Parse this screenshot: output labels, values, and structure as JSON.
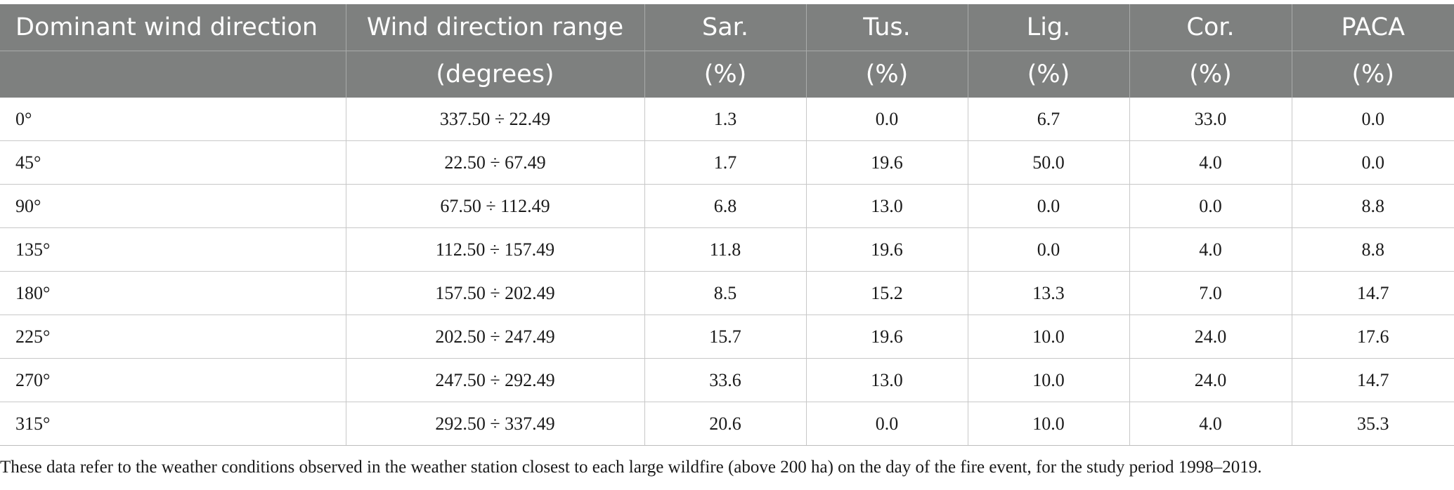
{
  "table": {
    "header_row1": [
      "Dominant wind direction",
      "Wind direction range",
      "Sar.",
      "Tus.",
      "Lig.",
      "Cor.",
      "PACA"
    ],
    "header_row2": [
      "",
      "(degrees)",
      "(%)",
      "(%)",
      "(%)",
      "(%)",
      "(%)"
    ],
    "rows": [
      [
        "0°",
        "337.50 ÷ 22.49",
        "1.3",
        "0.0",
        "6.7",
        "33.0",
        "0.0"
      ],
      [
        "45°",
        "22.50 ÷ 67.49",
        "1.7",
        "19.6",
        "50.0",
        "4.0",
        "0.0"
      ],
      [
        "90°",
        "67.50 ÷ 112.49",
        "6.8",
        "13.0",
        "0.0",
        "0.0",
        "8.8"
      ],
      [
        "135°",
        "112.50 ÷ 157.49",
        "11.8",
        "19.6",
        "0.0",
        "4.0",
        "8.8"
      ],
      [
        "180°",
        "157.50 ÷ 202.49",
        "8.5",
        "15.2",
        "13.3",
        "7.0",
        "14.7"
      ],
      [
        "225°",
        "202.50 ÷ 247.49",
        "15.7",
        "19.6",
        "10.0",
        "24.0",
        "17.6"
      ],
      [
        "270°",
        "247.50 ÷ 292.49",
        "33.6",
        "13.0",
        "10.0",
        "24.0",
        "14.7"
      ],
      [
        "315°",
        "292.50 ÷ 337.49",
        "20.6",
        "0.0",
        "10.0",
        "4.0",
        "35.3"
      ]
    ]
  },
  "footnote": "These data refer to the weather conditions observed in the weather station closest to each large wildfire (above 200 ha) on the day of the fire event, for the study period 1998–2019.",
  "colors": {
    "header_bg": "#7e807f",
    "header_text": "#ffffff",
    "grid": "#c8c8c8"
  }
}
